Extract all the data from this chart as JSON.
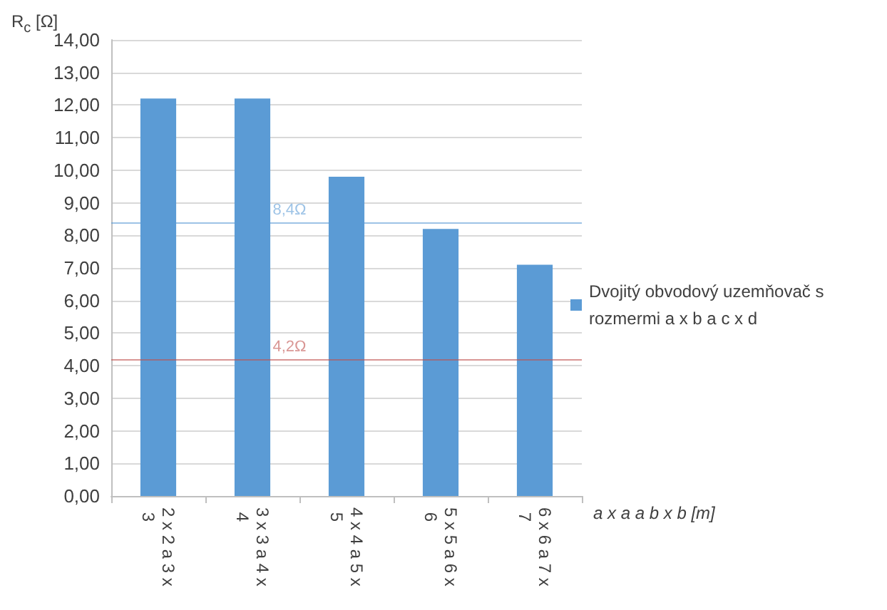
{
  "chart_data": {
    "type": "bar",
    "ylabel": "R$_{c}$ [Ω]",
    "xlabel": "a x a a b x b [m]",
    "categories": [
      "2 x 2 a 3 x 3",
      "3 x 3 a 4 x 4",
      "4 x 4 a 5 x 5",
      "5 x 5 a 6 x 6",
      "6 x 6 a 7 x 7"
    ],
    "series": [
      {
        "name": "Dvojitý obvodový uzemňovač s rozmermi a x b a c x d",
        "color": "#5b9bd5",
        "values": [
          12.2,
          12.2,
          9.8,
          8.2,
          7.1
        ]
      }
    ],
    "ylim": [
      0,
      14
    ],
    "yticks": [
      {
        "value": 0,
        "label": "0,00"
      },
      {
        "value": 1,
        "label": "1,00"
      },
      {
        "value": 2,
        "label": "2,00"
      },
      {
        "value": 3,
        "label": "3,00"
      },
      {
        "value": 4,
        "label": "4,00"
      },
      {
        "value": 5,
        "label": "5,00"
      },
      {
        "value": 6,
        "label": "6,00"
      },
      {
        "value": 7,
        "label": "7,00"
      },
      {
        "value": 8,
        "label": "8,00"
      },
      {
        "value": 9,
        "label": "9,00"
      },
      {
        "value": 10,
        "label": "10,00"
      },
      {
        "value": 11,
        "label": "11,00"
      },
      {
        "value": 12,
        "label": "12,00"
      },
      {
        "value": 13,
        "label": "13,00"
      },
      {
        "value": 14,
        "label": "14,00"
      }
    ],
    "ref_lines": [
      {
        "axis": "y",
        "value": 8.4,
        "label": "8,4Ω",
        "color": "#5b9bd5"
      },
      {
        "axis": "y",
        "value": 4.2,
        "label": "4,2Ω",
        "color": "#c0504d"
      }
    ],
    "grid": "y",
    "legend": "right"
  }
}
